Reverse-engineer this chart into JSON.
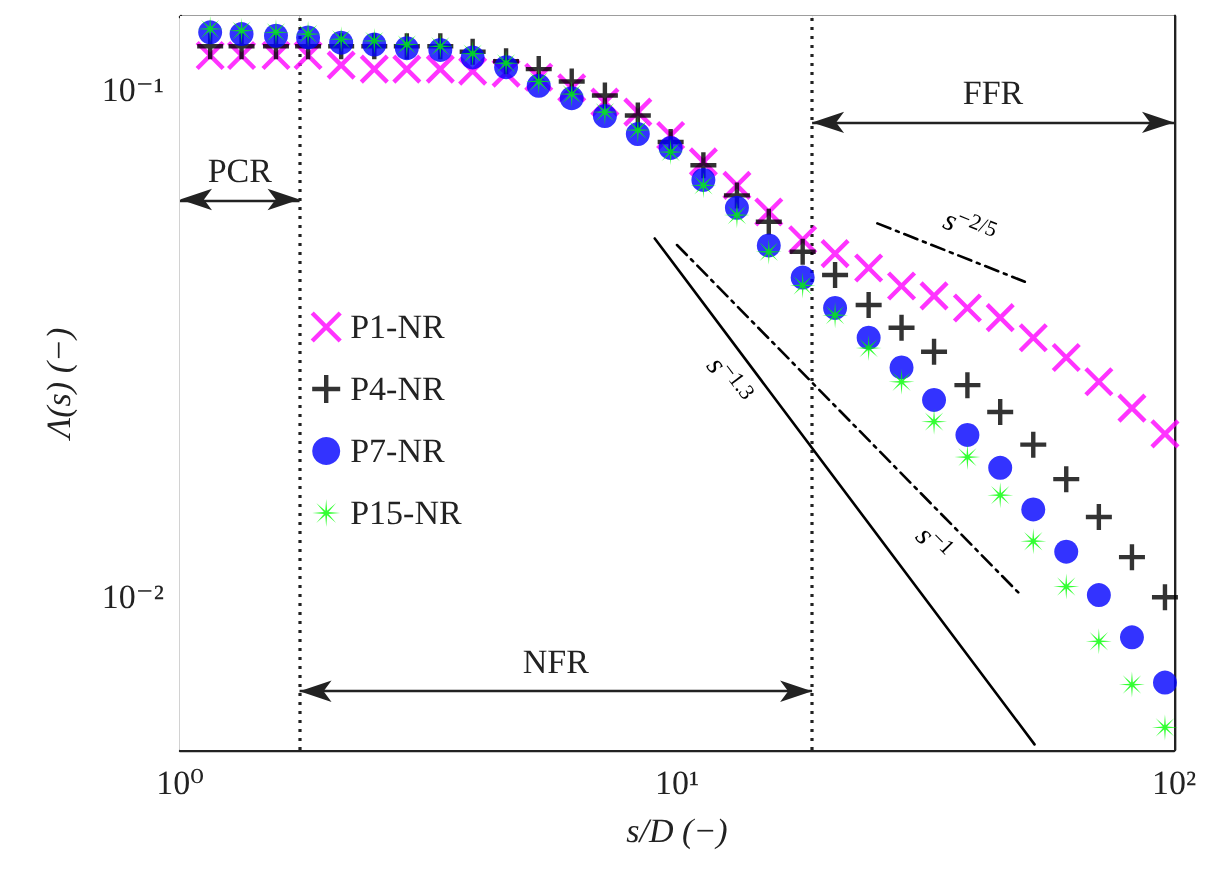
{
  "chart_data": {
    "type": "scatter",
    "xlabel": "s/D (−)",
    "ylabel": "Λ(s) (−)",
    "x": [
      1.15,
      1.33,
      1.56,
      1.81,
      2.11,
      2.46,
      2.86,
      3.34,
      3.88,
      4.53,
      5.27,
      6.14,
      7.16,
      8.34,
      9.71,
      11.3,
      13.2,
      15.3,
      17.9,
      20.8,
      24.3,
      28.3,
      32.9,
      38.4,
      44.7,
      52.1,
      60.7,
      70.6,
      82.3,
      95.9
    ],
    "series": [
      {
        "name": "P1-NR",
        "color": "#ff00ff",
        "marker": "cross",
        "values": [
          0.117,
          0.117,
          0.117,
          0.117,
          0.112,
          0.11,
          0.11,
          0.11,
          0.109,
          0.108,
          0.106,
          0.101,
          0.0947,
          0.0905,
          0.0814,
          0.0722,
          0.0649,
          0.0575,
          0.0507,
          0.0476,
          0.0446,
          0.0411,
          0.0393,
          0.0372,
          0.0356,
          0.0325,
          0.0297,
          0.0266,
          0.0236,
          0.021
        ]
      },
      {
        "name": "P4-NR",
        "color": "#000000",
        "marker": "plus",
        "values": [
          0.122,
          0.122,
          0.122,
          0.122,
          0.122,
          0.122,
          0.122,
          0.122,
          0.119,
          0.114,
          0.11,
          0.104,
          0.0976,
          0.0891,
          0.079,
          0.0711,
          0.062,
          0.055,
          0.048,
          0.0432,
          0.0377,
          0.034,
          0.0305,
          0.0262,
          0.0232,
          0.02,
          0.0171,
          0.0144,
          0.012,
          0.01
        ]
      },
      {
        "name": "P7-NR",
        "color": "#0000ff",
        "marker": "circle",
        "values": [
          0.13,
          0.129,
          0.128,
          0.127,
          0.124,
          0.123,
          0.121,
          0.12,
          0.116,
          0.111,
          0.102,
          0.0964,
          0.0889,
          0.0819,
          0.0769,
          0.0665,
          0.0586,
          0.0494,
          0.0427,
          0.0372,
          0.0325,
          0.0284,
          0.0245,
          0.0209,
          0.018,
          0.0149,
          0.0123,
          0.0101,
          0.00834,
          0.00679
        ]
      },
      {
        "name": "P15-NR",
        "color": "#00ff00",
        "marker": "star",
        "values": [
          0.132,
          0.131,
          0.13,
          0.129,
          0.126,
          0.125,
          0.123,
          0.122,
          0.118,
          0.113,
          0.104,
          0.0982,
          0.0905,
          0.0834,
          0.0755,
          0.0649,
          0.0567,
          0.048,
          0.0412,
          0.036,
          0.031,
          0.0266,
          0.0222,
          0.0189,
          0.0159,
          0.0129,
          0.0105,
          0.00819,
          0.00673,
          0.00554
        ]
      },
      {
        "name": "s$^{−2/5}$",
        "type": "line",
        "color": "#000000",
        "line_style": "dashdot",
        "marker": "none",
        "x": [
          25.3,
          50.1
        ],
        "values": [
          0.0546,
          0.0419
        ]
      },
      {
        "name": "s$^{−1.3}$",
        "type": "line",
        "color": "#000000",
        "line_style": "solid",
        "marker": "none",
        "x": [
          9.02,
          52.4
        ],
        "values": [
          0.051,
          0.00513
        ]
      },
      {
        "name": "s$^{−1}$",
        "type": "line",
        "color": "#000000",
        "line_style": "dashdot",
        "marker": "none",
        "x": [
          10.0,
          49.2
        ],
        "values": [
          0.0495,
          0.0101
        ]
      }
    ],
    "log": "xy",
    "xlim": [
      1,
      100
    ],
    "xticks": [
      {
        "value": 1,
        "label": "10⁰"
      },
      {
        "value": 2,
        "label": null
      },
      {
        "value": 3,
        "label": null
      },
      {
        "value": 4,
        "label": null
      },
      {
        "value": 5,
        "label": null
      },
      {
        "value": 6,
        "label": null
      },
      {
        "value": 7,
        "label": null
      },
      {
        "value": 8,
        "label": null
      },
      {
        "value": 9,
        "label": null
      },
      {
        "value": 10,
        "label": "10¹"
      },
      {
        "value": 20,
        "label": null
      },
      {
        "value": 30,
        "label": null
      },
      {
        "value": 40,
        "label": null
      },
      {
        "value": 50,
        "label": null
      },
      {
        "value": 60,
        "label": null
      },
      {
        "value": 70,
        "label": null
      },
      {
        "value": 80,
        "label": null
      },
      {
        "value": 90,
        "label": null
      },
      {
        "value": 100,
        "label": "10²"
      }
    ],
    "ylim": [
      0.005,
      0.14
    ],
    "yticks": [
      {
        "value": 0.006,
        "label": null
      },
      {
        "value": 0.007,
        "label": null
      },
      {
        "value": 0.008,
        "label": null
      },
      {
        "value": 0.009,
        "label": null
      },
      {
        "value": 0.01,
        "label": "10⁻²"
      },
      {
        "value": 0.02,
        "label": null
      },
      {
        "value": 0.03,
        "label": null
      },
      {
        "value": 0.04,
        "label": null
      },
      {
        "value": 0.05,
        "label": null
      },
      {
        "value": 0.06,
        "label": null
      },
      {
        "value": 0.07,
        "label": null
      },
      {
        "value": 0.08,
        "label": null
      },
      {
        "value": 0.09,
        "label": null
      },
      {
        "value": 0.1,
        "label": "10⁻¹"
      }
    ],
    "ref_lines": [
      {
        "axis": "x",
        "value": 1.74,
        "line_style": "dotted"
      },
      {
        "axis": "x",
        "value": 18.7,
        "line_style": "dotted"
      }
    ],
    "bands": [
      {
        "axis": "x",
        "from": 1,
        "to": 1.74,
        "label": "PCR",
        "color": "#ffffff"
      },
      {
        "axis": "x",
        "from": 1.74,
        "to": 18.7,
        "label": "NFR",
        "color": "#ffffff"
      },
      {
        "axis": "x",
        "from": 18.7,
        "to": 100,
        "label": "FFR",
        "color": "#ffffff"
      }
    ],
    "legend": "left"
  }
}
